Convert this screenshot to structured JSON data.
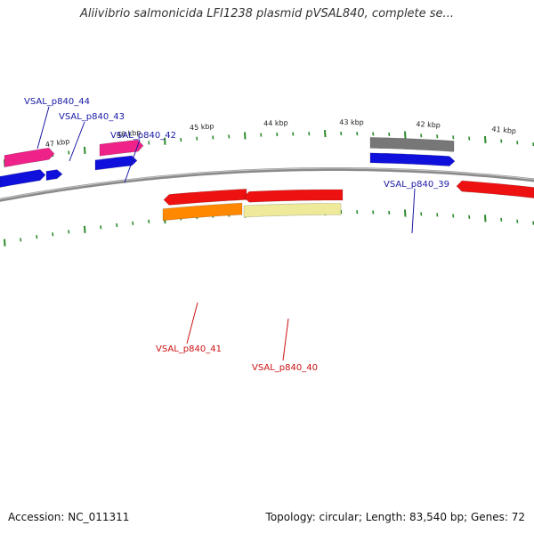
{
  "header": {
    "title": "Aliivibrio salmonicida LFI1238 plasmid pVSAL840, complete se..."
  },
  "footer": {
    "accession": "Accession: NC_011311",
    "topology": "Topology: circular; Length: 83,540 bp; Genes: 72"
  },
  "colors": {
    "backbone": "#8a8a8a",
    "tick": "#2e8b2e",
    "forward_label": "#1a1aa6",
    "reverse_label": "#cc1111",
    "red_gene": "#ee1111",
    "blue_gene": "#1010dd",
    "pink_gene": "#ee2288",
    "grey_gene": "#777777",
    "orange_gene": "#ff8800",
    "yellow_gene": "#eeea9a"
  },
  "kbp_labels": [
    "47 kbp",
    "46 kbp",
    "45 kbp",
    "44 kbp",
    "43 kbp",
    "42 kbp",
    "41 kbp"
  ],
  "gene_labels": [
    {
      "text": "VSAL_p840_44",
      "strand": "forward"
    },
    {
      "text": "VSAL_p840_43",
      "strand": "forward"
    },
    {
      "text": "VSAL_p840_42",
      "strand": "forward"
    },
    {
      "text": "VSAL_p840_39",
      "strand": "forward"
    },
    {
      "text": "VSAL_p840_41",
      "strand": "reverse"
    },
    {
      "text": "VSAL_p840_40",
      "strand": "reverse"
    }
  ]
}
